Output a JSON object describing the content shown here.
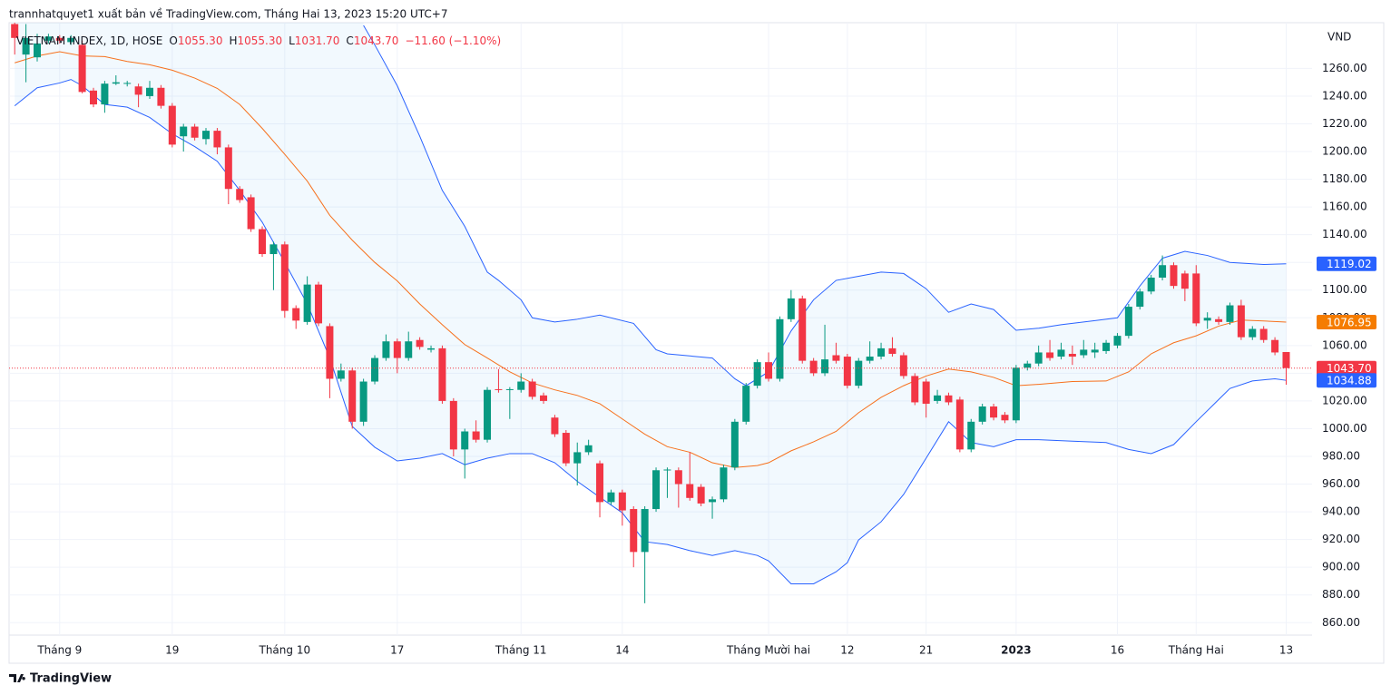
{
  "header": "trannhatquyet1 xuất bản về TradingView.com, Tháng Hai 13, 2023 15:20 UTC+7",
  "footer": "TradingView",
  "chart_data": {
    "type": "candlestick",
    "legend": {
      "symbol": "VIETNAM INDEX, 1D, HOSE",
      "items": [
        {
          "key": "O",
          "value": "1055.30"
        },
        {
          "key": "H",
          "value": "1055.30"
        },
        {
          "key": "L",
          "value": "1031.70"
        },
        {
          "key": "C",
          "value": "1043.70"
        }
      ],
      "change": "−11.60 (−1.10%)"
    },
    "currency": "VND",
    "up_color": "#089981",
    "down_color": "#f23645",
    "xlim": [
      -0.5,
      115.3
    ],
    "ylim": [
      851,
      1293
    ],
    "xticks": [
      {
        "value": 4,
        "label": "Tháng 9"
      },
      {
        "value": 14,
        "label": "19"
      },
      {
        "value": 24,
        "label": "Tháng 10"
      },
      {
        "value": 34,
        "label": "17"
      },
      {
        "value": 45,
        "label": "Tháng 11"
      },
      {
        "value": 54,
        "label": "14"
      },
      {
        "value": 67,
        "label": "Tháng Mười hai"
      },
      {
        "value": 74,
        "label": "12"
      },
      {
        "value": 81,
        "label": "21"
      },
      {
        "value": 89,
        "label": "2023"
      },
      {
        "value": 98,
        "label": "16"
      },
      {
        "value": 105,
        "label": "Tháng Hai"
      },
      {
        "value": 113,
        "label": "13"
      }
    ],
    "yticks": [
      {
        "value": 860,
        "label": "860.00"
      },
      {
        "value": 880,
        "label": "880.00"
      },
      {
        "value": 900,
        "label": "900.00"
      },
      {
        "value": 920,
        "label": "920.00"
      },
      {
        "value": 940,
        "label": "940.00"
      },
      {
        "value": 960,
        "label": "960.00"
      },
      {
        "value": 980,
        "label": "980.00"
      },
      {
        "value": 1000,
        "label": "1000.00"
      },
      {
        "value": 1020,
        "label": "1020.00"
      },
      {
        "value": 1040,
        "label": "1040.00"
      },
      {
        "value": 1060,
        "label": "1060.00"
      },
      {
        "value": 1080,
        "label": "1080.00"
      },
      {
        "value": 1100,
        "label": "1100.00"
      },
      {
        "value": 1120,
        "label": "1120.00"
      },
      {
        "value": 1140,
        "label": "1140.00"
      },
      {
        "value": 1160,
        "label": "1160.00"
      },
      {
        "value": 1180,
        "label": "1180.00"
      },
      {
        "value": 1200,
        "label": "1200.00"
      },
      {
        "value": 1220,
        "label": "1220.00"
      },
      {
        "value": 1240,
        "label": "1240.00"
      },
      {
        "value": 1260,
        "label": "1260.00"
      }
    ],
    "grid": true,
    "open": [
      1292,
      1270,
      1268,
      1280,
      1282,
      1279,
      1277,
      1244,
      1234,
      1249,
      1249,
      1247,
      1240,
      1246,
      1233,
      1211,
      1218,
      1209,
      1215,
      1203,
      1173,
      1167,
      1144,
      1126,
      1133,
      1087,
      1077,
      1104,
      1074,
      1036,
      1042,
      1005,
      1034,
      1051,
      1063,
      1051,
      1064,
      1057,
      1058,
      1020,
      985,
      998,
      992,
      1028.5,
      1028,
      1028,
      1034,
      1024,
      1008,
      997,
      975,
      983,
      975,
      947,
      954,
      942,
      911,
      942,
      970,
      970,
      960,
      958,
      947,
      949,
      972,
      1005,
      1031,
      1048,
      1036,
      1079,
      1094,
      1049,
      1040,
      1053,
      1052,
      1031,
      1049,
      1052,
      1058,
      1053,
      1038,
      1034,
      1020,
      1024,
      1021,
      985,
      1005,
      1016,
      1010,
      1006,
      1044,
      1047,
      1055,
      1052,
      1054,
      1053,
      1055,
      1056,
      1060,
      1067,
      1088,
      1099,
      1109,
      1118,
      1112,
      1112,
      1078,
      1079,
      1077,
      1089,
      1066,
      1072,
      1064,
      1055.3
    ],
    "high": [
      1293,
      1292,
      1285,
      1285,
      1284,
      1284,
      1280,
      1246,
      1251,
      1255,
      1251,
      1249,
      1251,
      1248,
      1235,
      1220,
      1220,
      1217,
      1217,
      1205,
      1175,
      1169,
      1146,
      1135,
      1135,
      1089,
      1110,
      1106,
      1076,
      1047,
      1044,
      1036,
      1053,
      1068,
      1065,
      1070,
      1066,
      1060,
      1060,
      1022,
      1000,
      1006,
      1030,
      1043,
      1030,
      1040,
      1036,
      1026,
      1010,
      999,
      990,
      992,
      977,
      956,
      956,
      944,
      944,
      972,
      972,
      972,
      983,
      960,
      951,
      974,
      1007,
      1033,
      1050,
      1055,
      1081,
      1100,
      1096,
      1051,
      1075,
      1062,
      1054,
      1051,
      1063,
      1062,
      1066,
      1055,
      1040,
      1036,
      1028,
      1026,
      1023,
      1007,
      1018,
      1018,
      1012,
      1046,
      1049,
      1060,
      1064,
      1062,
      1060,
      1064,
      1062,
      1064,
      1069,
      1090,
      1101,
      1111,
      1125,
      1120,
      1114,
      1118,
      1084,
      1081,
      1091,
      1093,
      1074,
      1074,
      1066,
      1055.3
    ],
    "low": [
      1270,
      1250,
      1265,
      1278,
      1278,
      1277,
      1242,
      1232,
      1228,
      1248,
      1247,
      1232,
      1238,
      1231,
      1203,
      1200,
      1208,
      1205,
      1198,
      1162,
      1163,
      1142,
      1124,
      1100,
      1080,
      1072,
      1075,
      1074,
      1022,
      1034,
      1000,
      1002,
      1032,
      1049,
      1040,
      1049,
      1057,
      1055,
      1018,
      980,
      964,
      990,
      990,
      1026,
      1007,
      1026,
      1021,
      1018,
      994,
      973,
      959,
      981,
      936,
      945,
      930,
      900,
      874,
      940,
      950,
      943,
      948,
      944,
      935,
      947,
      970,
      1003,
      1029,
      1034,
      1034,
      1077,
      1047,
      1038,
      1038,
      1047,
      1029,
      1029,
      1047,
      1050,
      1052,
      1036,
      1017,
      1008,
      1018,
      1017,
      983,
      983,
      1003,
      1006,
      1004,
      1004,
      1042,
      1045,
      1049,
      1050,
      1046,
      1051,
      1051,
      1054,
      1058,
      1065,
      1086,
      1097,
      1107,
      1101,
      1092,
      1074,
      1072,
      1075,
      1075,
      1064,
      1064,
      1062,
      1053,
      1031.7
    ],
    "close": [
      1282,
      1282,
      1278,
      1283,
      1280,
      1282,
      1243,
      1234,
      1249,
      1250,
      1249.5,
      1241,
      1246,
      1233,
      1205,
      1218,
      1210,
      1215,
      1203,
      1173,
      1165,
      1144,
      1126,
      1133,
      1085,
      1078,
      1104,
      1076,
      1036,
      1042,
      1005,
      1034,
      1051,
      1063,
      1051,
      1063,
      1059,
      1058,
      1020,
      985,
      998,
      992,
      1028,
      1028,
      1028.5,
      1034,
      1023,
      1020,
      996,
      975,
      983,
      988,
      947,
      954,
      941,
      911,
      942,
      970,
      970.5,
      960,
      950,
      946,
      949,
      972,
      1005,
      1031,
      1048,
      1036,
      1079,
      1094,
      1049,
      1040,
      1050,
      1049,
      1031,
      1049,
      1052,
      1058,
      1054,
      1038,
      1019,
      1018,
      1024,
      1019,
      985,
      1005,
      1016,
      1008,
      1006,
      1044,
      1047,
      1055,
      1051,
      1057,
      1052,
      1057,
      1057,
      1062,
      1067,
      1088,
      1099,
      1109,
      1118,
      1103,
      1101,
      1076,
      1080,
      1077,
      1089,
      1066,
      1072,
      1064,
      1055,
      1043.7
    ],
    "band_fill": "rgba(33,150,243,0.06)",
    "series": [
      {
        "color": "#2962ff",
        "x": [
          31,
          32,
          34,
          36,
          38,
          40,
          42,
          43,
          45,
          46,
          48,
          50,
          52,
          55,
          57,
          58,
          62,
          64,
          65,
          67,
          69,
          71,
          73,
          75,
          77,
          79,
          81,
          83,
          85,
          87,
          89,
          91,
          93,
          96,
          98,
          100,
          102,
          104,
          106,
          108,
          111,
          113
        ],
        "values": [
          1291,
          1277,
          1247.5,
          1211,
          1172,
          1146,
          1113,
          1107,
          1093,
          1080,
          1077,
          1079,
          1082,
          1076,
          1057,
          1054,
          1051,
          1036,
          1031,
          1041,
          1070.5,
          1093,
          1107,
          1110,
          1113,
          1112,
          1101,
          1084,
          1090,
          1086,
          1071,
          1072.5,
          1075,
          1078,
          1080,
          1103,
          1123,
          1128,
          1125,
          1120,
          1118.5,
          1119.02
        ]
      },
      {
        "color": "#f7701c",
        "x": [
          0,
          2,
          4,
          6,
          8,
          10,
          12,
          14,
          16,
          18,
          20,
          22,
          24,
          26,
          28,
          30,
          32,
          34,
          36,
          38,
          40,
          42,
          44,
          46,
          48,
          50,
          52,
          54,
          56,
          58,
          60,
          62,
          64,
          66,
          67,
          69,
          71,
          73,
          75,
          77,
          79,
          81,
          83,
          85,
          87,
          89,
          91,
          94,
          97,
          99,
          101,
          103,
          105,
          107,
          109,
          111,
          113
        ],
        "values": [
          1264,
          1269,
          1272,
          1269,
          1268.5,
          1265,
          1262.6,
          1258.7,
          1253,
          1245.6,
          1234,
          1216.7,
          1198,
          1178.7,
          1154,
          1136,
          1120,
          1106.6,
          1090,
          1075,
          1060.7,
          1051,
          1041,
          1033,
          1028,
          1024,
          1018,
          1007,
          996,
          987,
          983,
          975.4,
          972,
          973.4,
          975.4,
          984,
          990.5,
          998,
          1011.5,
          1022.6,
          1031,
          1038,
          1043,
          1041,
          1037,
          1031,
          1032,
          1034,
          1034.4,
          1041,
          1054,
          1062,
          1067,
          1074,
          1078.4,
          1077.7,
          1076.95
        ]
      },
      {
        "color": "#2962ff",
        "x": [
          0,
          2,
          4,
          5,
          6,
          8,
          10,
          12,
          14,
          16,
          18,
          20,
          22,
          24,
          26,
          28,
          30,
          32,
          34,
          36,
          38,
          40,
          42,
          44,
          46,
          48,
          50,
          52,
          54,
          56,
          58,
          60,
          62,
          64,
          66,
          67,
          69,
          71,
          73,
          74,
          75,
          77,
          79,
          81,
          83,
          85,
          87,
          89,
          91,
          94,
          97,
          99,
          101,
          103,
          105,
          107,
          108,
          110,
          112,
          113
        ],
        "values": [
          1233,
          1246,
          1249.5,
          1252,
          1247.5,
          1234,
          1232,
          1224.6,
          1212.8,
          1203.6,
          1193,
          1172,
          1149,
          1120,
          1090,
          1051,
          1001.6,
          986.6,
          976.7,
          978.7,
          982,
          974,
          978.7,
          982,
          982,
          975.4,
          962,
          950.5,
          939.3,
          918.4,
          916.4,
          912,
          908.5,
          912,
          908.5,
          904.6,
          888,
          888,
          896.7,
          903.3,
          919.7,
          932.8,
          952.5,
          978.7,
          1005,
          990,
          987,
          992,
          992,
          991,
          990,
          985,
          982,
          988.5,
          1005,
          1021,
          1029,
          1034.4,
          1036,
          1034.88
        ]
      }
    ],
    "price_tags": [
      {
        "value": 1119.02,
        "label": "1119.02",
        "color": "#2962ff"
      },
      {
        "value": 1076.95,
        "label": "1076.95",
        "color": "#f57c00"
      },
      {
        "value": 1043.7,
        "label": "1043.70",
        "color": "#f23645"
      },
      {
        "value": 1034.88,
        "label": "1034.88",
        "color": "#2962ff"
      }
    ]
  }
}
